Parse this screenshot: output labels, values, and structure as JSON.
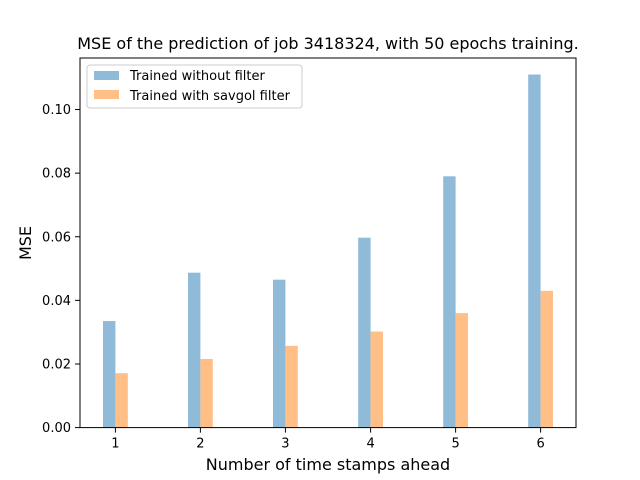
{
  "chart_data": {
    "type": "bar",
    "title": "MSE of the prediction of job 3418324, with 50 epochs training.",
    "xlabel": "Number of time stamps ahead",
    "ylabel": "MSE",
    "categories": [
      "1",
      "2",
      "3",
      "4",
      "5",
      "6"
    ],
    "series": [
      {
        "name": "Trained without filter",
        "color": "#8fbbd9",
        "values": [
          0.0335,
          0.0487,
          0.0465,
          0.0597,
          0.079,
          0.111
        ]
      },
      {
        "name": "Trained with savgol filter",
        "color": "#ffbf86",
        "values": [
          0.0171,
          0.0216,
          0.0257,
          0.0302,
          0.036,
          0.043
        ]
      }
    ],
    "yticks": [
      "0.00",
      "0.02",
      "0.04",
      "0.06",
      "0.08",
      "0.10"
    ],
    "ylim": [
      0,
      0.1162
    ],
    "legend_position": "upper-left",
    "grid": false
  }
}
